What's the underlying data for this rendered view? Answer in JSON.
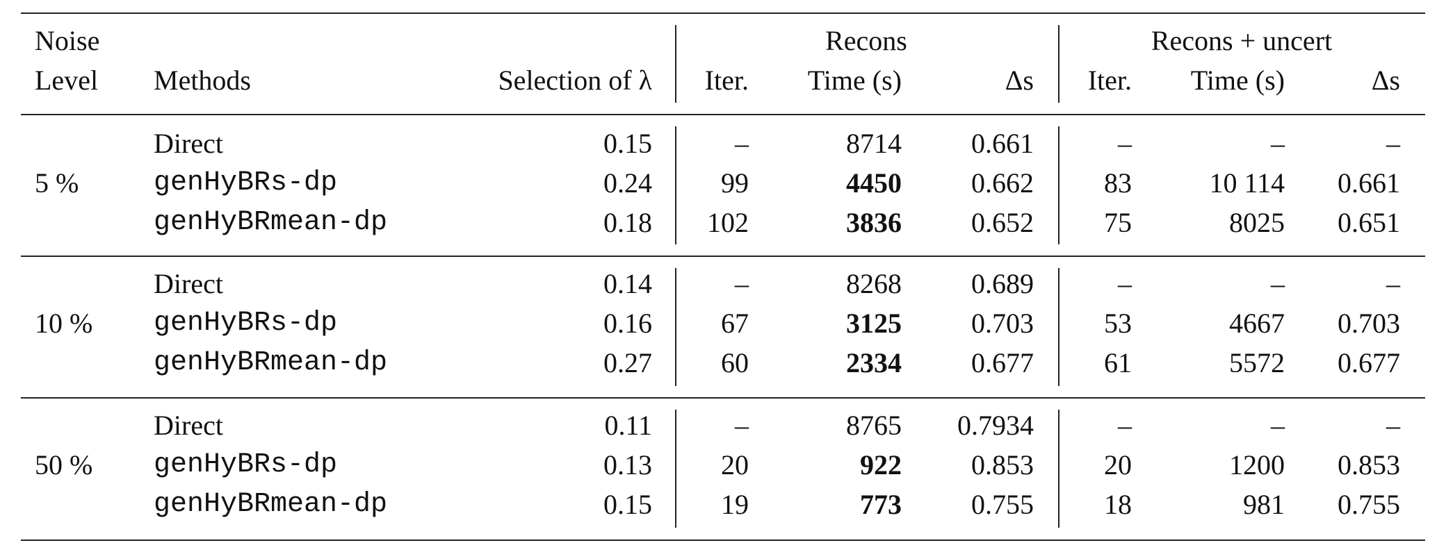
{
  "header": {
    "noise": [
      "Noise",
      "Level"
    ],
    "methods": "Methods",
    "selection": "Selection of λ",
    "groups": [
      "Recons",
      "Recons + uncert"
    ],
    "columns": [
      "Iter.",
      "Time (s)",
      "Δs",
      "Iter.",
      "Time (s)",
      "Δs"
    ]
  },
  "table": {
    "groups": [
      {
        "noise": "5 %",
        "rows": [
          [
            "Direct",
            "0.15",
            "–",
            "8714",
            "0.661",
            "–",
            "–",
            "–"
          ],
          [
            "genHyBRs-dp",
            "0.24",
            "99",
            "4450",
            "0.662",
            "83",
            "10 114",
            "0.661"
          ],
          [
            "genHyBRmean-dp",
            "0.18",
            "102",
            "3836",
            "0.652",
            "75",
            "8025",
            "0.651"
          ]
        ]
      },
      {
        "noise": "10 %",
        "rows": [
          [
            "Direct",
            "0.14",
            "–",
            "8268",
            "0.689",
            "–",
            "–",
            "–"
          ],
          [
            "genHyBRs-dp",
            "0.16",
            "67",
            "3125",
            "0.703",
            "53",
            "4667",
            "0.703"
          ],
          [
            "genHyBRmean-dp",
            "0.27",
            "60",
            "2334",
            "0.677",
            "61",
            "5572",
            "0.677"
          ]
        ]
      },
      {
        "noise": "50 %",
        "rows": [
          [
            "Direct",
            "0.11",
            "–",
            "8765",
            "0.7934",
            "–",
            "–",
            "–"
          ],
          [
            "genHyBRs-dp",
            "0.13",
            "20",
            "922",
            "0.853",
            "20",
            "1200",
            "0.853"
          ],
          [
            "genHyBRmean-dp",
            "0.15",
            "19",
            "773",
            "0.755",
            "18",
            "981",
            "0.755"
          ]
        ]
      }
    ]
  }
}
